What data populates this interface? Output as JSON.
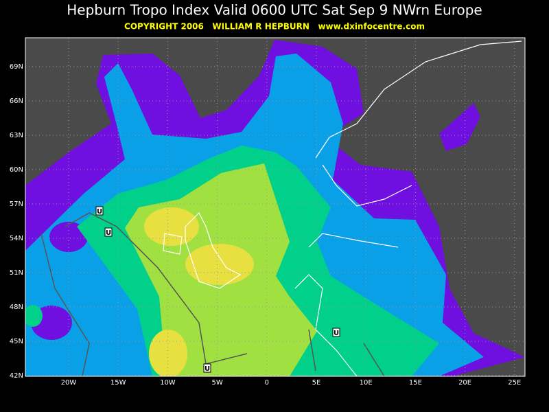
{
  "header": {
    "title": "Hepburn Tropo Index Valid 0600 UTC Sat Sep 9 NWrn Europe",
    "copyright": "COPYRIGHT 2006   WILLIAM R HEPBURN   www.dxinfocentre.com"
  },
  "axes": {
    "lat_labels": [
      "69N",
      "66N",
      "63N",
      "60N",
      "57N",
      "54N",
      "51N",
      "48N",
      "45N",
      "42N"
    ],
    "lon_labels": [
      "20W",
      "15W",
      "10W",
      "5W",
      "0",
      "5E",
      "10E",
      "15E",
      "20E",
      "25E"
    ]
  },
  "markers": [
    "U",
    "U",
    "U",
    "U"
  ]
}
